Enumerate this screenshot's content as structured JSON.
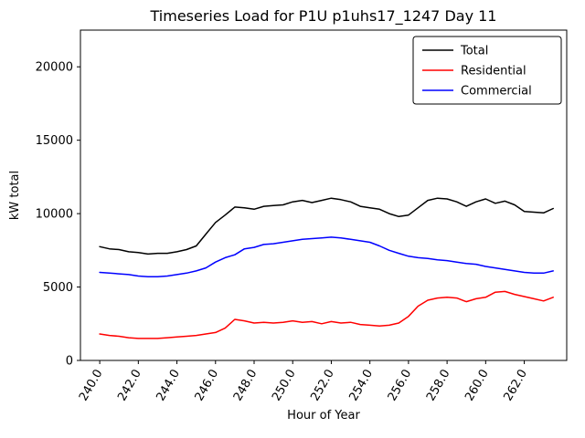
{
  "chart_data": {
    "type": "line",
    "title": "Timeseries Load for P1U p1uhs17_1247  Day 11",
    "xlabel": "Hour of Year",
    "ylabel": "kW total",
    "grid": false,
    "legend_position": "upper right",
    "xlim": [
      239.0,
      264.2
    ],
    "ylim": [
      0,
      22500
    ],
    "xticks": [
      240,
      242,
      244,
      246,
      248,
      250,
      252,
      254,
      256,
      258,
      260,
      262
    ],
    "xtick_labels": [
      "240.0",
      "242.0",
      "244.0",
      "246.0",
      "248.0",
      "250.0",
      "252.0",
      "254.0",
      "256.0",
      "258.0",
      "260.0",
      "262.0"
    ],
    "yticks": [
      0,
      5000,
      10000,
      15000,
      20000
    ],
    "ytick_labels": [
      "0",
      "5000",
      "10000",
      "15000",
      "20000"
    ],
    "x": [
      240,
      240.5,
      241,
      241.5,
      242,
      242.5,
      243,
      243.5,
      244,
      244.5,
      245,
      245.5,
      246,
      246.5,
      247,
      247.5,
      248,
      248.5,
      249,
      249.5,
      250,
      250.5,
      251,
      251.5,
      252,
      252.5,
      253,
      253.5,
      254,
      254.5,
      255,
      255.5,
      256,
      256.5,
      257,
      257.5,
      258,
      258.5,
      259,
      259.5,
      260,
      260.5,
      261,
      261.5,
      262,
      262.5,
      263,
      263.5
    ],
    "series": [
      {
        "name": "Total",
        "color": "#000000",
        "values": [
          7750,
          7600,
          7550,
          7400,
          7350,
          7250,
          7300,
          7300,
          7400,
          7550,
          7800,
          8600,
          9400,
          9900,
          10450,
          10400,
          10300,
          10500,
          10550,
          10600,
          10800,
          10900,
          10750,
          10900,
          11050,
          10950,
          10800,
          10500,
          10400,
          10300,
          10000,
          9800,
          9900,
          10400,
          10900,
          11050,
          11000,
          10800,
          10500,
          10800,
          11000,
          10700,
          10850,
          10600,
          10150,
          10100,
          10050,
          10350
        ]
      },
      {
        "name": "Residential",
        "color": "#ff0000",
        "values": [
          1800,
          1700,
          1650,
          1550,
          1500,
          1500,
          1500,
          1550,
          1600,
          1650,
          1700,
          1800,
          1900,
          2200,
          2800,
          2700,
          2550,
          2600,
          2550,
          2600,
          2700,
          2600,
          2650,
          2500,
          2650,
          2550,
          2600,
          2450,
          2400,
          2350,
          2400,
          2550,
          3000,
          3700,
          4100,
          4250,
          4300,
          4250,
          4000,
          4200,
          4300,
          4650,
          4700,
          4500,
          4350,
          4200,
          4050,
          4300
        ]
      },
      {
        "name": "Commercial",
        "color": "#0000ff",
        "values": [
          6000,
          5950,
          5900,
          5850,
          5750,
          5700,
          5700,
          5750,
          5850,
          5950,
          6100,
          6300,
          6700,
          7000,
          7200,
          7600,
          7700,
          7900,
          7950,
          8050,
          8150,
          8250,
          8300,
          8350,
          8400,
          8350,
          8250,
          8150,
          8050,
          7800,
          7500,
          7300,
          7100,
          7000,
          6950,
          6850,
          6800,
          6700,
          6600,
          6550,
          6400,
          6300,
          6200,
          6100,
          6000,
          5950,
          5950,
          6100
        ]
      }
    ]
  }
}
